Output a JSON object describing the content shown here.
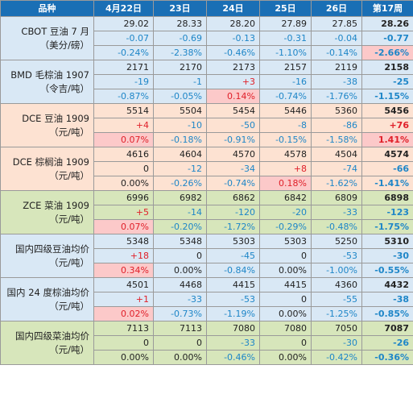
{
  "header": [
    "品种",
    "4月22日",
    "23日",
    "24日",
    "25日",
    "26日",
    "第17周"
  ],
  "groups": [
    {
      "name": "CBOT 豆油 7 月\n（美分/磅）",
      "theme": "a",
      "rows": [
        [
          "29.02",
          "28.33",
          "28.20",
          "27.89",
          "27.85",
          "28.26"
        ],
        [
          "-0.07",
          "-0.69",
          "-0.13",
          "-0.31",
          "-0.04",
          "-0.77"
        ],
        [
          "-0.24%",
          "-2.38%",
          "-0.46%",
          "-1.10%",
          "-0.14%",
          "-2.66%"
        ]
      ],
      "highlight": [
        [
          2,
          5
        ]
      ]
    },
    {
      "name": "BMD 毛棕油 1907\n（令吉/吨）",
      "theme": "a",
      "rows": [
        [
          "2171",
          "2170",
          "2173",
          "2157",
          "2119",
          "2158"
        ],
        [
          "-19",
          "-1",
          "+3",
          "-16",
          "-38",
          "-25"
        ],
        [
          "-0.87%",
          "-0.05%",
          "0.14%",
          "-0.74%",
          "-1.76%",
          "-1.15%"
        ]
      ],
      "highlight": [
        [
          2,
          2
        ]
      ]
    },
    {
      "name": "DCE 豆油 1909\n（元/吨）",
      "theme": "b",
      "rows": [
        [
          "5514",
          "5504",
          "5454",
          "5446",
          "5360",
          "5456"
        ],
        [
          "+4",
          "-10",
          "-50",
          "-8",
          "-86",
          "+76"
        ],
        [
          "0.07%",
          "-0.18%",
          "-0.91%",
          "-0.15%",
          "-1.58%",
          "1.41%"
        ]
      ],
      "highlight": [
        [
          2,
          0
        ],
        [
          2,
          5
        ]
      ]
    },
    {
      "name": "DCE 棕榈油 1909\n（元/吨）",
      "theme": "b",
      "rows": [
        [
          "4616",
          "4604",
          "4570",
          "4578",
          "4504",
          "4574"
        ],
        [
          "0",
          "-12",
          "-34",
          "+8",
          "-74",
          "-66"
        ],
        [
          "0.00%",
          "-0.26%",
          "-0.74%",
          "0.18%",
          "-1.62%",
          "-1.41%"
        ]
      ],
      "highlight": [
        [
          2,
          3
        ]
      ]
    },
    {
      "name": "ZCE 菜油 1909\n（元/吨）",
      "theme": "c",
      "rows": [
        [
          "6996",
          "6982",
          "6862",
          "6842",
          "6809",
          "6898"
        ],
        [
          "+5",
          "-14",
          "-120",
          "-20",
          "-33",
          "-123"
        ],
        [
          "0.07%",
          "-0.20%",
          "-1.72%",
          "-0.29%",
          "-0.48%",
          "-1.75%"
        ]
      ],
      "highlight": [
        [
          2,
          0
        ]
      ]
    },
    {
      "name": "国内四级豆油均价\n（元/吨）",
      "theme": "d",
      "rows": [
        [
          "5348",
          "5348",
          "5303",
          "5303",
          "5250",
          "5310"
        ],
        [
          "+18",
          "0",
          "-45",
          "0",
          "-53",
          "-30"
        ],
        [
          "0.34%",
          "0.00%",
          "-0.84%",
          "0.00%",
          "-1.00%",
          "-0.55%"
        ]
      ],
      "highlight": [
        [
          2,
          0
        ]
      ]
    },
    {
      "name": "国内 24 度棕油均价\n（元/吨）",
      "theme": "d",
      "rows": [
        [
          "4501",
          "4468",
          "4415",
          "4415",
          "4360",
          "4432"
        ],
        [
          "+1",
          "-33",
          "-53",
          "0",
          "-55",
          "-38"
        ],
        [
          "0.02%",
          "-0.73%",
          "-1.19%",
          "0.00%",
          "-1.25%",
          "-0.85%"
        ]
      ],
      "highlight": [
        [
          2,
          0
        ]
      ]
    },
    {
      "name": "国内四级菜油均价\n（元/吨）",
      "theme": "c",
      "rows": [
        [
          "7113",
          "7113",
          "7080",
          "7080",
          "7050",
          "7087"
        ],
        [
          "0",
          "0",
          "-33",
          "0",
          "-30",
          "-26"
        ],
        [
          "0.00%",
          "0.00%",
          "-0.46%",
          "0.00%",
          "-0.42%",
          "-0.36%"
        ]
      ],
      "highlight": []
    }
  ]
}
